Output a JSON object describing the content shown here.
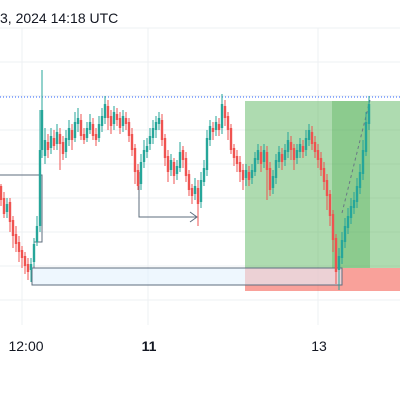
{
  "header": {
    "timestamp_text": "3, 2024 14:18 UTC"
  },
  "x_axis": {
    "labels": [
      {
        "text": "12:00",
        "bold": false,
        "index": 0
      },
      {
        "text": "11",
        "bold": true,
        "index": 1
      },
      {
        "text": "13",
        "bold": false,
        "index": 2
      }
    ]
  },
  "colors": {
    "up": "#26a69a",
    "down": "#ef5350",
    "profit_zone": "#4caf50",
    "loss_zone": "#f44336",
    "range_box_border": "#5d6d7e",
    "range_box_fill": "#e3f2fd",
    "price_line": "#2962ff",
    "grid": "#eef0f3",
    "projection": "#6a7885"
  },
  "chart_data": {
    "type": "candlestick",
    "y_axis": "price (no scale shown)",
    "x_ticks": [
      "12:00",
      "11",
      "13"
    ],
    "drawings": [
      "long-position tool (green profit zone, red loss zone)",
      "horizontal range box",
      "horizontal arrow",
      "dashed projection line",
      "dotted horizontal price line"
    ]
  }
}
